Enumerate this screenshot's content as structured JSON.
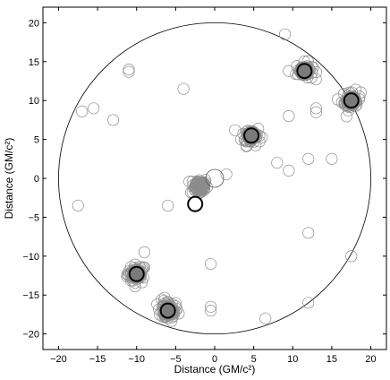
{
  "chart_data": {
    "type": "scatter",
    "xlabel": "Distance (GM/c²)",
    "ylabel": "Distance (GM/c²)",
    "xlim": [
      -22,
      22
    ],
    "ylim": [
      -22,
      22
    ],
    "xticks": [
      -20,
      -15,
      -10,
      -5,
      0,
      5,
      10,
      15,
      20
    ],
    "yticks": [
      -20,
      -15,
      -10,
      -5,
      0,
      5,
      10,
      15,
      20
    ],
    "grid": false,
    "boundary_circle": {
      "cx": 0,
      "cy": 0,
      "r": 20
    },
    "clusters": [
      {
        "name": "",
        "center": [
          -10,
          -12.3
        ],
        "spread": 1.0,
        "count": 45
      },
      {
        "name": "",
        "center": [
          -6,
          -17
        ],
        "spread": 1.1,
        "count": 55
      },
      {
        "name": "",
        "center": [
          -2,
          -1
        ],
        "spread": 0.9,
        "count": 45
      },
      {
        "name": "",
        "center": [
          4.7,
          5.5
        ],
        "spread": 1.0,
        "count": 45
      },
      {
        "name": "",
        "center": [
          11.5,
          13.8
        ],
        "spread": 0.9,
        "count": 40
      },
      {
        "name": "",
        "center": [
          17.5,
          10
        ],
        "spread": 1.0,
        "count": 40
      }
    ],
    "scattered_points": [
      [
        -17,
        8.6
      ],
      [
        -15.5,
        9
      ],
      [
        -13,
        7.5
      ],
      [
        -11,
        14
      ],
      [
        -11,
        13.7
      ],
      [
        -4,
        11.5
      ],
      [
        -6,
        -3.5
      ],
      [
        1.5,
        0.5
      ],
      [
        -0.5,
        -11
      ],
      [
        -0.5,
        -16.5
      ],
      [
        -0.5,
        -17
      ],
      [
        6.5,
        -18
      ],
      [
        8,
        2
      ],
      [
        9.5,
        1
      ],
      [
        9,
        18.5
      ],
      [
        9.5,
        13.8
      ],
      [
        12,
        2.5
      ],
      [
        12,
        -7
      ],
      [
        12,
        -16
      ],
      [
        15,
        2.5
      ],
      [
        17.5,
        -10
      ],
      [
        13,
        8.5
      ],
      [
        9.5,
        8
      ],
      [
        13,
        9
      ],
      [
        -17.5,
        -3.5
      ],
      [
        -9,
        -9.5
      ]
    ],
    "large_open_circle": [
      0,
      0
    ],
    "highlighted_points": [
      {
        "x": -10,
        "y": -12.3,
        "style": "filled-dark"
      },
      {
        "x": -6,
        "y": -17,
        "style": "filled-dark"
      },
      {
        "x": 4.7,
        "y": 5.5,
        "style": "filled-dark"
      },
      {
        "x": 11.5,
        "y": 13.8,
        "style": "filled-dark"
      },
      {
        "x": 17.5,
        "y": 10,
        "style": "filled-dark"
      },
      {
        "x": -2.5,
        "y": -3.3,
        "style": "open-white"
      }
    ],
    "colors": {
      "scatter_stroke": "#8c8c8c",
      "cluster_fill": "#888888",
      "highlight_fill": "#7a7a7a",
      "highlight_stroke": "#000000"
    }
  }
}
